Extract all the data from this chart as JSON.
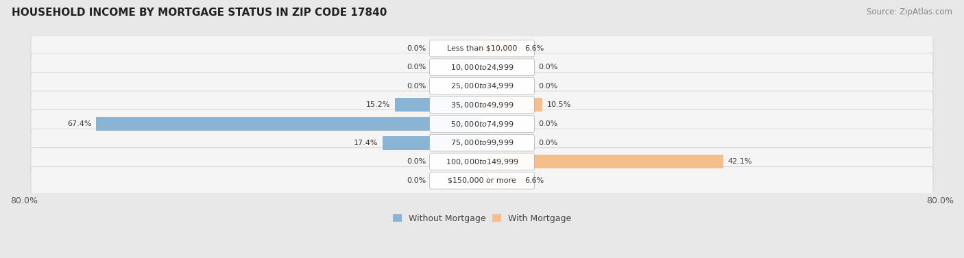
{
  "title": "HOUSEHOLD INCOME BY MORTGAGE STATUS IN ZIP CODE 17840",
  "source": "Source: ZipAtlas.com",
  "categories": [
    "Less than $10,000",
    "$10,000 to $24,999",
    "$25,000 to $34,999",
    "$35,000 to $49,999",
    "$50,000 to $74,999",
    "$75,000 to $99,999",
    "$100,000 to $149,999",
    "$150,000 or more"
  ],
  "without_mortgage": [
    0.0,
    0.0,
    0.0,
    15.2,
    67.4,
    17.4,
    0.0,
    0.0
  ],
  "with_mortgage": [
    6.6,
    0.0,
    0.0,
    10.5,
    0.0,
    0.0,
    42.1,
    6.6
  ],
  "color_without": "#8ab4d4",
  "color_with": "#f5be8d",
  "axis_min": -80.0,
  "axis_max": 80.0,
  "bg_color": "#e8e8e8",
  "row_bg_color": "#f0f0f0",
  "bar_height": 0.72,
  "legend_label_without": "Without Mortgage",
  "legend_label_with": "With Mortgage",
  "label_fontsize": 8,
  "cat_fontsize": 8,
  "title_fontsize": 11,
  "source_fontsize": 8.5
}
